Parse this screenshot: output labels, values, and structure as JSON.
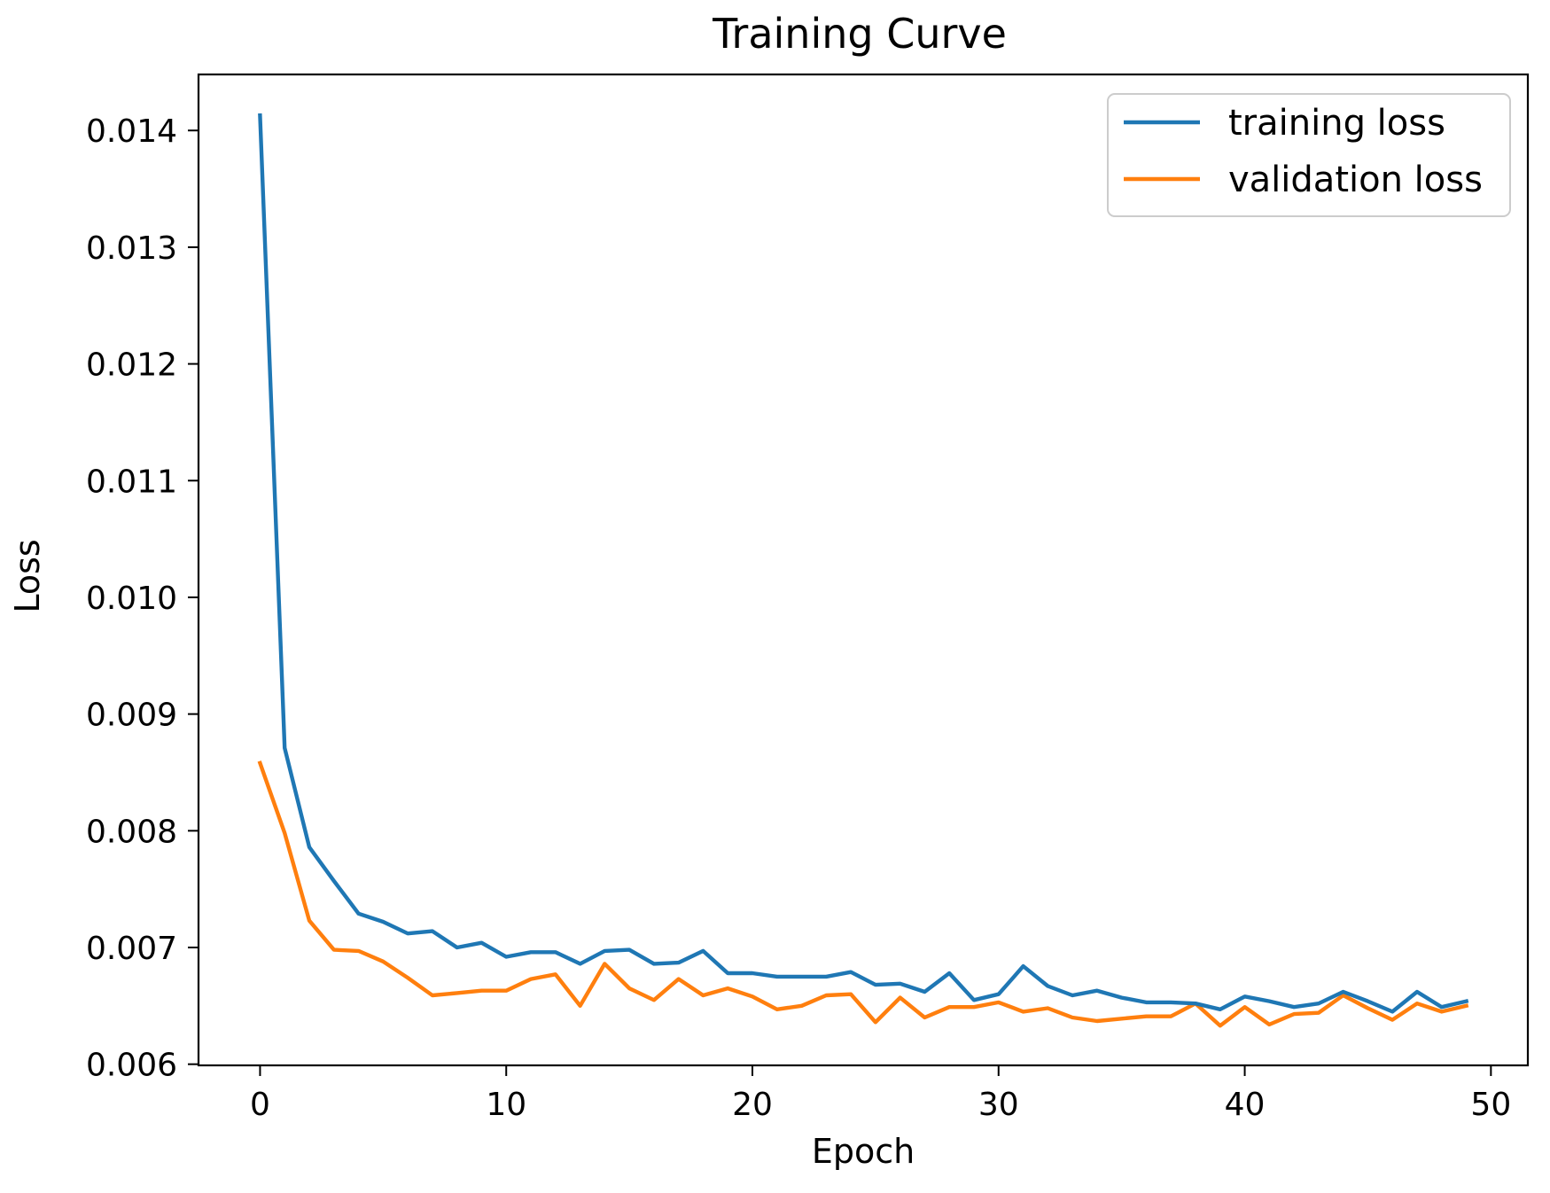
{
  "chart_data": {
    "type": "line",
    "title": "Training Curve",
    "xlabel": "Epoch",
    "ylabel": "Loss",
    "xlim": [
      -2.5,
      51.5
    ],
    "ylim": [
      0.00599,
      0.01448
    ],
    "xticks": [
      0,
      10,
      20,
      30,
      40,
      50
    ],
    "xtick_labels": [
      "0",
      "10",
      "20",
      "30",
      "40",
      "50"
    ],
    "yticks": [
      0.006,
      0.007,
      0.008,
      0.009,
      0.01,
      0.011,
      0.012,
      0.013,
      0.014
    ],
    "ytick_labels": [
      "0.006",
      "0.007",
      "0.008",
      "0.009",
      "0.010",
      "0.011",
      "0.012",
      "0.013",
      "0.014"
    ],
    "grid": false,
    "legend_position": "top-right",
    "x": [
      0,
      1,
      2,
      3,
      4,
      5,
      6,
      7,
      8,
      9,
      10,
      11,
      12,
      13,
      14,
      15,
      16,
      17,
      18,
      19,
      20,
      21,
      22,
      23,
      24,
      25,
      26,
      27,
      28,
      29,
      30,
      31,
      32,
      33,
      34,
      35,
      36,
      37,
      38,
      39,
      40,
      41,
      42,
      43,
      44,
      45,
      46,
      47,
      48,
      49
    ],
    "series": [
      {
        "name": "training loss",
        "color": "#1f77b4",
        "values": [
          0.01413,
          0.00871,
          0.00786,
          0.00757,
          0.00729,
          0.00722,
          0.00712,
          0.00714,
          0.007,
          0.00704,
          0.00692,
          0.00696,
          0.00696,
          0.00686,
          0.00697,
          0.00698,
          0.00686,
          0.00687,
          0.00697,
          0.00678,
          0.00678,
          0.00675,
          0.00675,
          0.00675,
          0.00679,
          0.00668,
          0.00669,
          0.00662,
          0.00678,
          0.00655,
          0.0066,
          0.00684,
          0.00667,
          0.00659,
          0.00663,
          0.00657,
          0.00653,
          0.00653,
          0.00652,
          0.00647,
          0.00658,
          0.00654,
          0.00649,
          0.00652,
          0.00662,
          0.00654,
          0.00645,
          0.00662,
          0.00649,
          0.00654
        ]
      },
      {
        "name": "validation loss",
        "color": "#ff7f0e",
        "values": [
          0.00858,
          0.00798,
          0.00723,
          0.00698,
          0.00697,
          0.00688,
          0.00674,
          0.00659,
          0.00661,
          0.00663,
          0.00663,
          0.00673,
          0.00677,
          0.0065,
          0.00686,
          0.00665,
          0.00655,
          0.00673,
          0.00659,
          0.00665,
          0.00658,
          0.00647,
          0.0065,
          0.00659,
          0.0066,
          0.00636,
          0.00657,
          0.0064,
          0.00649,
          0.00649,
          0.00653,
          0.00645,
          0.00648,
          0.0064,
          0.00637,
          0.00639,
          0.00641,
          0.00641,
          0.00652,
          0.00633,
          0.00649,
          0.00634,
          0.00643,
          0.00644,
          0.00659,
          0.00648,
          0.00638,
          0.00652,
          0.00645,
          0.0065
        ]
      }
    ]
  }
}
